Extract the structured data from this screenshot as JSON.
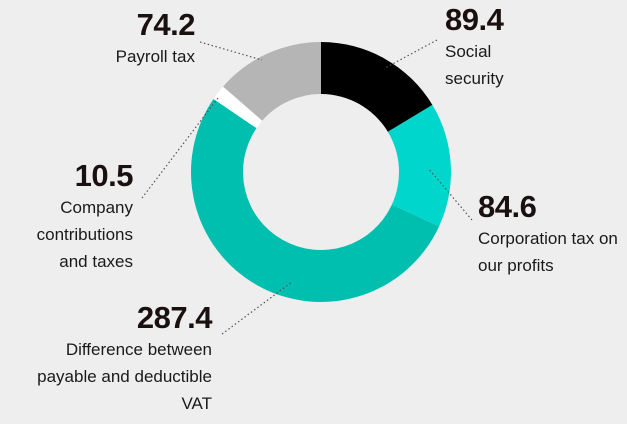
{
  "chart_data": {
    "type": "donut",
    "categories": [
      "Social security",
      "Corporation tax on our profits",
      "Difference between payable and deductible VAT",
      "Company contributions and taxes",
      "Payroll tax"
    ],
    "values": [
      89.4,
      84.6,
      287.4,
      10.5,
      74.2
    ],
    "colors": [
      "#000000",
      "#00d6cb",
      "#00bfae",
      "#ffffff",
      "#b5b5b5"
    ]
  }
}
